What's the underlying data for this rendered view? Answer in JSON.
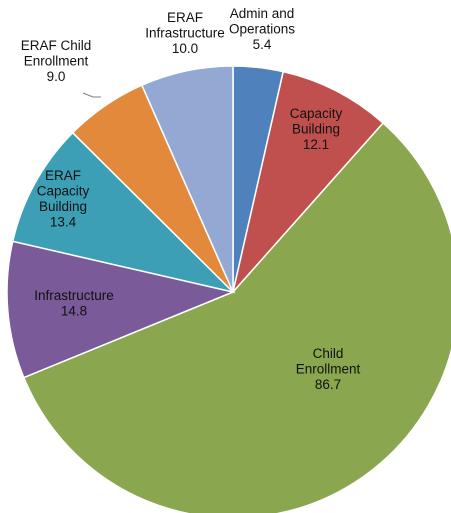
{
  "chart_data": {
    "type": "pie",
    "title": "",
    "slices": [
      {
        "label_lines": [
          "Admin and",
          "Operations",
          "5.4"
        ],
        "label": "Admin and Operations",
        "value": 5.4,
        "color": "#4f81bd"
      },
      {
        "label_lines": [
          "Capacity",
          "Building",
          "12.1"
        ],
        "label": "Capacity Building",
        "value": 12.1,
        "color": "#c0504d"
      },
      {
        "label_lines": [
          "Child",
          "Enrollment",
          "86.7"
        ],
        "label": "Child Enrollment",
        "value": 86.7,
        "color": "#8aa64e"
      },
      {
        "label_lines": [
          "Infrastructure",
          "14.8"
        ],
        "label": "Infrastructure",
        "value": 14.8,
        "color": "#7b5a9a"
      },
      {
        "label_lines": [
          "ERAF",
          "Capacity",
          "Building",
          "13.4"
        ],
        "label": "ERAF Capacity Building",
        "value": 13.4,
        "color": "#3d9fb5"
      },
      {
        "label_lines": [
          "ERAF Child",
          "Enrollment",
          "9.0"
        ],
        "label": "ERAF Child Enrollment",
        "value": 9.0,
        "color": "#e3893c"
      },
      {
        "label_lines": [
          "ERAF",
          "Infrastructure",
          "10.0"
        ],
        "label": "ERAF Infrastructure",
        "value": 10.0,
        "color": "#93a9d4"
      }
    ]
  }
}
